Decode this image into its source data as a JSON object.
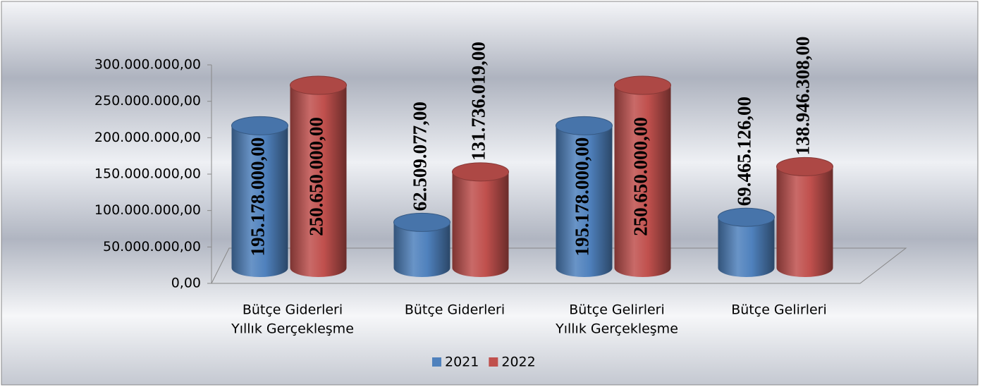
{
  "chart_data": {
    "type": "bar3d",
    "categories": [
      [
        "Bütçe Giderleri",
        "Yıllık Gerçekleşme"
      ],
      [
        "Bütçe Giderleri"
      ],
      [
        "Bütçe Gelirleri",
        "Yıllık Gerçekleşme"
      ],
      [
        "Bütçe Gelirleri"
      ]
    ],
    "series": [
      {
        "name": "2021",
        "color": "#4f81bd",
        "values": [
          195178000,
          62509077,
          195178000,
          69465126
        ],
        "value_labels": [
          "195.178.000,00",
          "62.509.077,00",
          "195.178.000,00",
          "69.465.126,00"
        ]
      },
      {
        "name": "2022",
        "color": "#c0504d",
        "values": [
          250650000,
          131736019,
          250650000,
          138946308
        ],
        "value_labels": [
          "250.650.000,00",
          "131.736.019,00",
          "250.650.000,00",
          "138.946.308,00"
        ]
      }
    ],
    "ylim": [
      0,
      300000000
    ],
    "yticks": [
      {
        "value": 0,
        "label": "0,00"
      },
      {
        "value": 50000000,
        "label": "50.000.000,00"
      },
      {
        "value": 100000000,
        "label": "100.000.000,00"
      },
      {
        "value": 150000000,
        "label": "150.000.000,00"
      },
      {
        "value": 200000000,
        "label": "200.000.000,00"
      },
      {
        "value": 250000000,
        "label": "250.000.000,00"
      },
      {
        "value": 300000000,
        "label": "300.000.000,00"
      }
    ],
    "legend": "bottom"
  }
}
